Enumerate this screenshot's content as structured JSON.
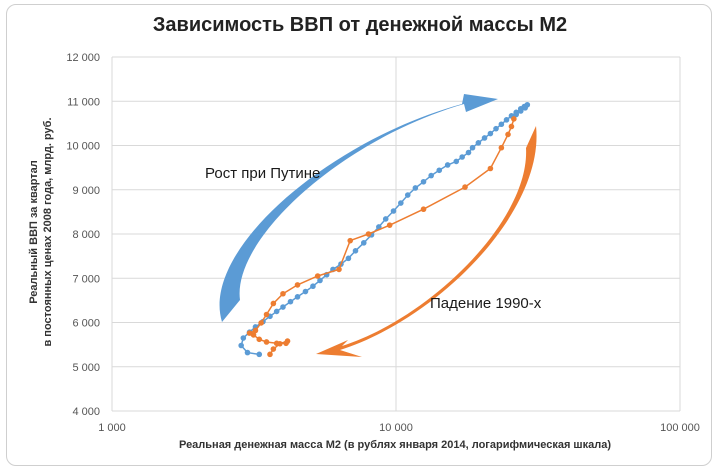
{
  "chart_data": {
    "type": "line",
    "title": "Зависимость ВВП от денежной массы М2",
    "xlabel": "Реальная денежная масса М2 (в рублях января 2014, логарифмическая шкала)",
    "ylabel_line1": "Реальный ВВП за квартал",
    "ylabel_line2": "в постоянных ценах 2008 года, млрд. руб.",
    "x_scale": "log",
    "xlim": [
      1000,
      100000
    ],
    "ylim": [
      4000,
      12000
    ],
    "x_ticks": [
      1000,
      10000,
      100000
    ],
    "x_tick_labels": [
      "1 000",
      "10 000",
      "100 000"
    ],
    "y_ticks": [
      4000,
      5000,
      6000,
      7000,
      8000,
      9000,
      10000,
      11000,
      12000
    ],
    "y_tick_labels": [
      "4 000",
      "5 000",
      "6 000",
      "7 000",
      "8 000",
      "9 000",
      "10 000",
      "11 000",
      "12 000"
    ],
    "grid": true,
    "annotations": [
      {
        "text": "Рост при Путине",
        "x": 2400,
        "y": 9400,
        "color": "#1a1a1a"
      },
      {
        "text": "Падение 1990-х",
        "x": 12500,
        "y": 6300,
        "color": "#1a1a1a"
      }
    ],
    "colors": {
      "blue": "#5b9bd5",
      "orange": "#ed7d31"
    },
    "series": [
      {
        "color": "#5b9bd5",
        "x": [
          3300,
          3000,
          2850,
          2900,
          3050,
          3200,
          3400,
          3600,
          3800,
          4000,
          4250,
          4500,
          4800,
          5100,
          5400,
          5700,
          6000,
          6400,
          6800,
          7200,
          7700,
          8200,
          8700,
          9200,
          9800,
          10400,
          11000,
          11700,
          12500,
          13300,
          14200,
          15200,
          16300,
          17100,
          18000,
          18600,
          19500,
          20500,
          21500,
          22500,
          23500,
          24500,
          25500,
          26500,
          27500,
          28300,
          29000,
          28500,
          27500,
          26500
        ],
        "y": [
          5280,
          5320,
          5480,
          5650,
          5780,
          5900,
          6020,
          6140,
          6250,
          6350,
          6470,
          6580,
          6700,
          6820,
          6950,
          7080,
          7200,
          7320,
          7450,
          7620,
          7800,
          7980,
          8160,
          8340,
          8520,
          8700,
          8880,
          9040,
          9180,
          9320,
          9440,
          9560,
          9640,
          9740,
          9840,
          9950,
          10060,
          10170,
          10270,
          10380,
          10480,
          10580,
          10670,
          10750,
          10830,
          10880,
          10920,
          10850,
          10780,
          10700
        ]
      },
      {
        "color": "#ed7d31",
        "x": [
          3600,
          3700,
          3900,
          4150,
          4100,
          3800,
          3500,
          3300,
          3150,
          3050,
          3200,
          3350,
          3500,
          3700,
          4000,
          4500,
          5300,
          6300,
          6900,
          8000,
          9500,
          12500,
          17500,
          21500,
          23500,
          24800,
          25500,
          26000
        ],
        "y": [
          5280,
          5400,
          5520,
          5580,
          5530,
          5530,
          5560,
          5620,
          5720,
          5760,
          5820,
          5990,
          6180,
          6430,
          6650,
          6850,
          7050,
          7200,
          7850,
          8000,
          8200,
          8560,
          9060,
          9480,
          9950,
          10250,
          10430,
          10600
        ]
      }
    ]
  }
}
